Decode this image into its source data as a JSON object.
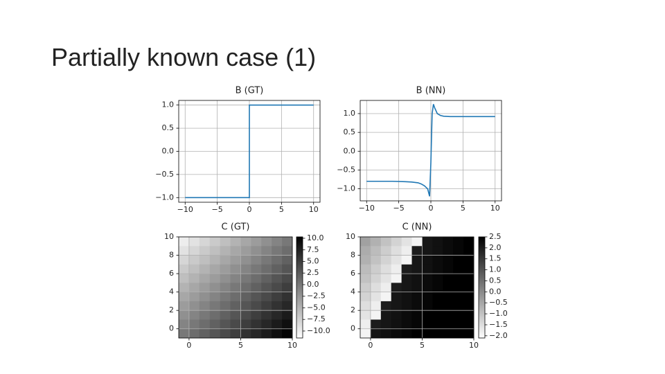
{
  "title": "Partially known case (1)",
  "chart_data": [
    {
      "type": "line",
      "title": "B (GT)",
      "color": "#1f77b4",
      "grid": true,
      "x": [
        -10,
        0,
        0,
        10
      ],
      "values": [
        -1,
        -1,
        1,
        1
      ],
      "xlim": [
        -11,
        11
      ],
      "ylim": [
        -1.1,
        1.1
      ],
      "xticks": [
        {
          "value": -10,
          "label": "−10"
        },
        {
          "value": -5,
          "label": "−5"
        },
        0,
        5,
        10
      ],
      "yticks": [
        {
          "value": -1,
          "label": "−1.0"
        },
        {
          "value": -0.5,
          "label": "−0.5"
        },
        {
          "value": 0,
          "label": "0.0"
        },
        0.5,
        {
          "value": 1,
          "label": "1.0"
        }
      ]
    },
    {
      "type": "line",
      "title": "B (NN)",
      "color": "#1f77b4",
      "grid": true,
      "x": [
        -10,
        -8,
        -6,
        -4,
        -3,
        -2,
        -1.5,
        -1,
        -0.5,
        -0.2,
        0,
        0.2,
        0.4,
        0.6,
        1,
        1.5,
        2,
        3,
        4,
        6,
        8,
        10
      ],
      "values": [
        -0.8,
        -0.8,
        -0.8,
        -0.81,
        -0.82,
        -0.84,
        -0.87,
        -0.92,
        -1.0,
        -1.2,
        -0.3,
        1.0,
        1.25,
        1.15,
        1.0,
        0.95,
        0.93,
        0.92,
        0.92,
        0.92,
        0.92,
        0.92
      ],
      "xlim": [
        -11,
        11
      ],
      "ylim": [
        -1.32,
        1.35
      ],
      "xticks": [
        {
          "value": -10,
          "label": "−10"
        },
        {
          "value": -5,
          "label": "−5"
        },
        0,
        5,
        10
      ],
      "yticks": [
        {
          "value": -1,
          "label": "−1.0"
        },
        {
          "value": -0.5,
          "label": "−0.5"
        },
        {
          "value": 0,
          "label": "0.0"
        },
        0.5,
        {
          "value": 1,
          "label": "1.0"
        }
      ]
    },
    {
      "type": "heatmap",
      "title": "C (GT)",
      "cmap": "Greys",
      "grid": true,
      "x": [
        -0.5,
        0.5,
        1.5,
        2.5,
        3.5,
        4.5,
        5.5,
        6.5,
        7.5,
        8.5,
        9.5
      ],
      "y": [
        9.5,
        8.5,
        7.5,
        6.5,
        5.5,
        4.5,
        3.5,
        2.5,
        1.5,
        0.5,
        -0.5
      ],
      "z": [
        [
          -10,
          -9,
          -8,
          -7,
          -6,
          -5,
          -4,
          -3,
          -2,
          -1,
          0
        ],
        [
          -9,
          -8,
          -7,
          -6,
          -5,
          -4,
          -3,
          -2,
          -1,
          0,
          1
        ],
        [
          -8,
          -7,
          -6,
          -5,
          -4,
          -3,
          -2,
          -1,
          0,
          1,
          2
        ],
        [
          -7,
          -6,
          -5,
          -4,
          -3,
          -2,
          -1,
          0,
          1,
          2,
          3
        ],
        [
          -6,
          -5,
          -4,
          -3,
          -2,
          -1,
          0,
          1,
          2,
          3,
          4
        ],
        [
          -5,
          -4,
          -3,
          -2,
          -1,
          0,
          1,
          2,
          3,
          4,
          5
        ],
        [
          -4,
          -3,
          -2,
          -1,
          0,
          1,
          2,
          3,
          4,
          5,
          6
        ],
        [
          -3,
          -2,
          -1,
          0,
          1,
          2,
          3,
          4,
          5,
          6,
          7
        ],
        [
          -2,
          -1,
          0,
          1,
          2,
          3,
          4,
          5,
          6,
          7,
          8
        ],
        [
          -1,
          0,
          1,
          2,
          3,
          4,
          5,
          6,
          7,
          8,
          9
        ],
        [
          0,
          1,
          2,
          3,
          4,
          5,
          6,
          7,
          8,
          9,
          10
        ]
      ],
      "xlim": [
        -1,
        10
      ],
      "ylim": [
        -1,
        10
      ],
      "zlim": [
        -11.5,
        10.3
      ],
      "xticks": [
        0,
        5,
        10
      ],
      "yticks": [
        0,
        2,
        4,
        6,
        8,
        10
      ],
      "colorbar_ticks": [
        {
          "value": 10,
          "label": "10.0"
        },
        7.5,
        {
          "value": 5,
          "label": "5.0"
        },
        2.5,
        {
          "value": 0,
          "label": "0.0"
        },
        {
          "value": -2.5,
          "label": "−2.5"
        },
        {
          "value": -5,
          "label": "−5.0"
        },
        {
          "value": -7.5,
          "label": "−7.5"
        },
        {
          "value": -10,
          "label": "−10.0"
        }
      ]
    },
    {
      "type": "heatmap",
      "title": "C (NN)",
      "cmap": "Greys",
      "grid": true,
      "x": [
        -0.5,
        0.5,
        1.5,
        2.5,
        3.5,
        4.5,
        5.5,
        6.5,
        7.5,
        8.5,
        9.5
      ],
      "y": [
        9.5,
        8.5,
        7.5,
        6.5,
        5.5,
        4.5,
        3.5,
        2.5,
        1.5,
        0.5,
        -0.5
      ],
      "z": [
        [
          -0.4,
          -0.7,
          -1.0,
          -1.3,
          -1.6,
          -1.9,
          2.1,
          2.2,
          2.3,
          2.4,
          2.5
        ],
        [
          -0.6,
          -0.9,
          -1.2,
          -1.5,
          -1.8,
          2.0,
          2.1,
          2.2,
          2.3,
          2.4,
          2.5
        ],
        [
          -0.7,
          -1.0,
          -1.3,
          -1.6,
          -1.9,
          2.1,
          2.2,
          2.3,
          2.4,
          2.5,
          2.5
        ],
        [
          -0.9,
          -1.2,
          -1.5,
          -1.8,
          2.0,
          2.1,
          2.2,
          2.3,
          2.4,
          2.5,
          2.5
        ],
        [
          -1.0,
          -1.3,
          -1.6,
          -1.9,
          2.1,
          2.2,
          2.3,
          2.4,
          2.5,
          2.5,
          2.5
        ],
        [
          -1.2,
          -1.5,
          -1.8,
          2.0,
          2.1,
          2.2,
          2.3,
          2.4,
          2.5,
          2.5,
          2.5
        ],
        [
          -1.3,
          -1.6,
          -1.9,
          2.1,
          2.2,
          2.3,
          2.4,
          2.5,
          2.5,
          2.5,
          2.5
        ],
        [
          -1.5,
          -1.8,
          2.0,
          2.1,
          2.2,
          2.3,
          2.4,
          2.5,
          2.5,
          2.5,
          2.5
        ],
        [
          -1.6,
          -1.9,
          2.1,
          2.2,
          2.3,
          2.4,
          2.5,
          2.5,
          2.5,
          2.5,
          2.5
        ],
        [
          -1.8,
          2.0,
          2.1,
          2.2,
          2.3,
          2.4,
          2.5,
          2.5,
          2.5,
          2.5,
          2.5
        ],
        [
          -1.9,
          2.1,
          2.2,
          2.3,
          2.4,
          2.5,
          2.5,
          2.5,
          2.5,
          2.5,
          2.5
        ]
      ],
      "xlim": [
        -1,
        10
      ],
      "ylim": [
        -1,
        10
      ],
      "zlim": [
        -2.1,
        2.5
      ],
      "xticks": [
        0,
        5,
        10
      ],
      "yticks": [
        0,
        2,
        4,
        6,
        8,
        10
      ],
      "colorbar_ticks": [
        2.5,
        {
          "value": 2,
          "label": "2.0"
        },
        1.5,
        {
          "value": 1,
          "label": "1.0"
        },
        0.5,
        {
          "value": 0,
          "label": "0.0"
        },
        {
          "value": -0.5,
          "label": "−0.5"
        },
        {
          "value": -1,
          "label": "−1.0"
        },
        {
          "value": -1.5,
          "label": "−1.5"
        },
        {
          "value": -2,
          "label": "−2.0"
        }
      ]
    }
  ]
}
